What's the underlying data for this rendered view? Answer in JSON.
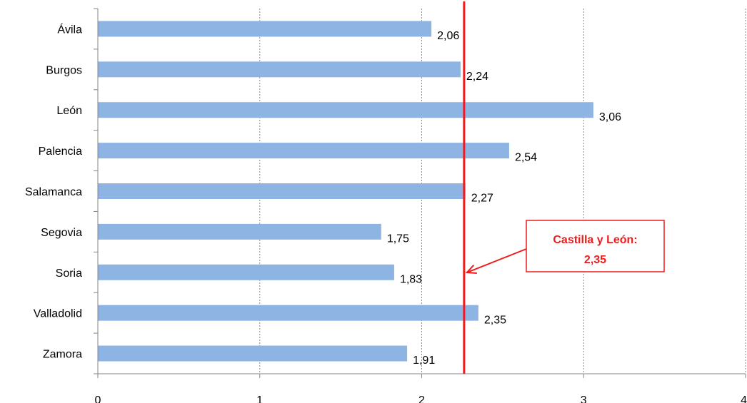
{
  "chart_data": {
    "type": "bar",
    "orientation": "horizontal",
    "categories": [
      "Ávila",
      "Burgos",
      "León",
      "Palencia",
      "Salamanca",
      "Segovia",
      "Soria",
      "Valladolid",
      "Zamora"
    ],
    "values": [
      2.06,
      2.24,
      3.06,
      2.54,
      2.27,
      1.75,
      1.83,
      2.35,
      1.91
    ],
    "value_labels": [
      "2,06",
      "2,24",
      "3,06",
      "2,54",
      "2,27",
      "1,75",
      "1,83",
      "2,35",
      "1,91"
    ],
    "title": "",
    "xlabel": "",
    "ylabel": "",
    "xlim": [
      0,
      4
    ],
    "xticks": [
      0,
      1,
      2,
      3,
      4
    ],
    "xtick_labels": [
      "0",
      "1",
      "2",
      "3",
      "4"
    ],
    "grid": "vertical-dotted",
    "reference_line": {
      "value": 2.35,
      "label_line1": "Castilla y León:",
      "label_line2": "2,35",
      "color": "#ee1c1c"
    },
    "bar_color": "#8eb4e3",
    "legend": "none"
  }
}
